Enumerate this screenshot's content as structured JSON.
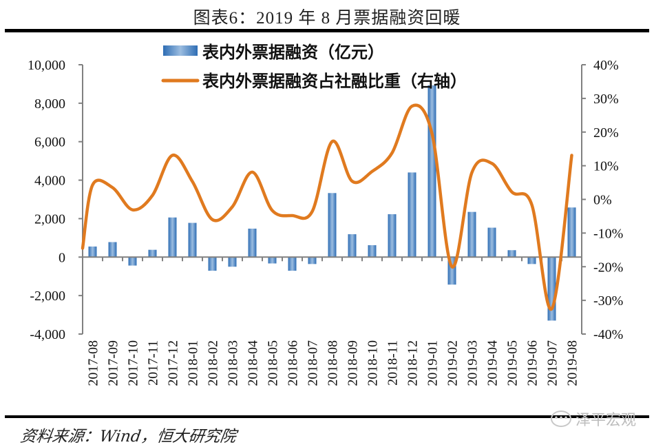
{
  "title": "图表6：2019 年 8 月票据融资回暖",
  "source": "资料来源：Wind，恒大研究院",
  "watermark": "泽平宏观",
  "watermark_icon": "wechat-icon",
  "colors": {
    "bar": "#2e6db4",
    "bar_light": "#9cbde0",
    "line": "#e07a1f",
    "axis": "#808080"
  },
  "chart_data": {
    "type": "bar+line",
    "title": "图表6：2019 年 8 月票据融资回暖",
    "categories": [
      "2017-08",
      "2017-09",
      "2017-10",
      "2017-11",
      "2017-12",
      "2018-01",
      "2018-02",
      "2018-03",
      "2018-04",
      "2018-05",
      "2018-06",
      "2018-07",
      "2018-08",
      "2018-09",
      "2018-10",
      "2018-11",
      "2018-12",
      "2019-01",
      "2019-02",
      "2019-03",
      "2019-04",
      "2019-05",
      "2019-06",
      "2019-07",
      "2019-08"
    ],
    "series": [
      {
        "name": "表内外票据融资（亿元）",
        "type": "bar",
        "axis": "left",
        "values": [
          550,
          780,
          -440,
          380,
          2060,
          1780,
          -710,
          -500,
          1480,
          -330,
          -710,
          -360,
          3330,
          1190,
          620,
          2230,
          4400,
          8930,
          -1430,
          2350,
          1530,
          360,
          -360,
          -3300,
          2580
        ]
      },
      {
        "name": "表内外票据融资占社融比重（右轴）",
        "type": "line",
        "axis": "right",
        "unit": "%",
        "lead_in_value": -14.5,
        "values": [
          4.3,
          3.5,
          -3.1,
          1.2,
          13.1,
          5.3,
          -6.0,
          -2.2,
          8.1,
          -3.3,
          -4.8,
          -3.6,
          17.2,
          5.4,
          8.3,
          13.8,
          27.7,
          19.6,
          -20.0,
          8.0,
          10.7,
          2.2,
          -1.6,
          -32.5,
          13.1
        ]
      }
    ],
    "left_axis": {
      "range": [
        -4000,
        10000
      ],
      "ticks": [
        10000,
        8000,
        6000,
        4000,
        2000,
        0,
        -2000,
        -4000
      ],
      "tick_labels": [
        "10,000",
        "8,000",
        "6,000",
        "4,000",
        "2,000",
        "0",
        "-2,000",
        "-4,000"
      ]
    },
    "right_axis": {
      "range": [
        -40,
        40
      ],
      "ticks": [
        40,
        30,
        20,
        10,
        0,
        -10,
        -20,
        -30,
        -40
      ],
      "tick_labels": [
        "40%",
        "30%",
        "20%",
        "10%",
        "0%",
        "-10%",
        "-20%",
        "-30%",
        "-40%"
      ]
    },
    "legend_position": "top-center",
    "grid": false
  }
}
